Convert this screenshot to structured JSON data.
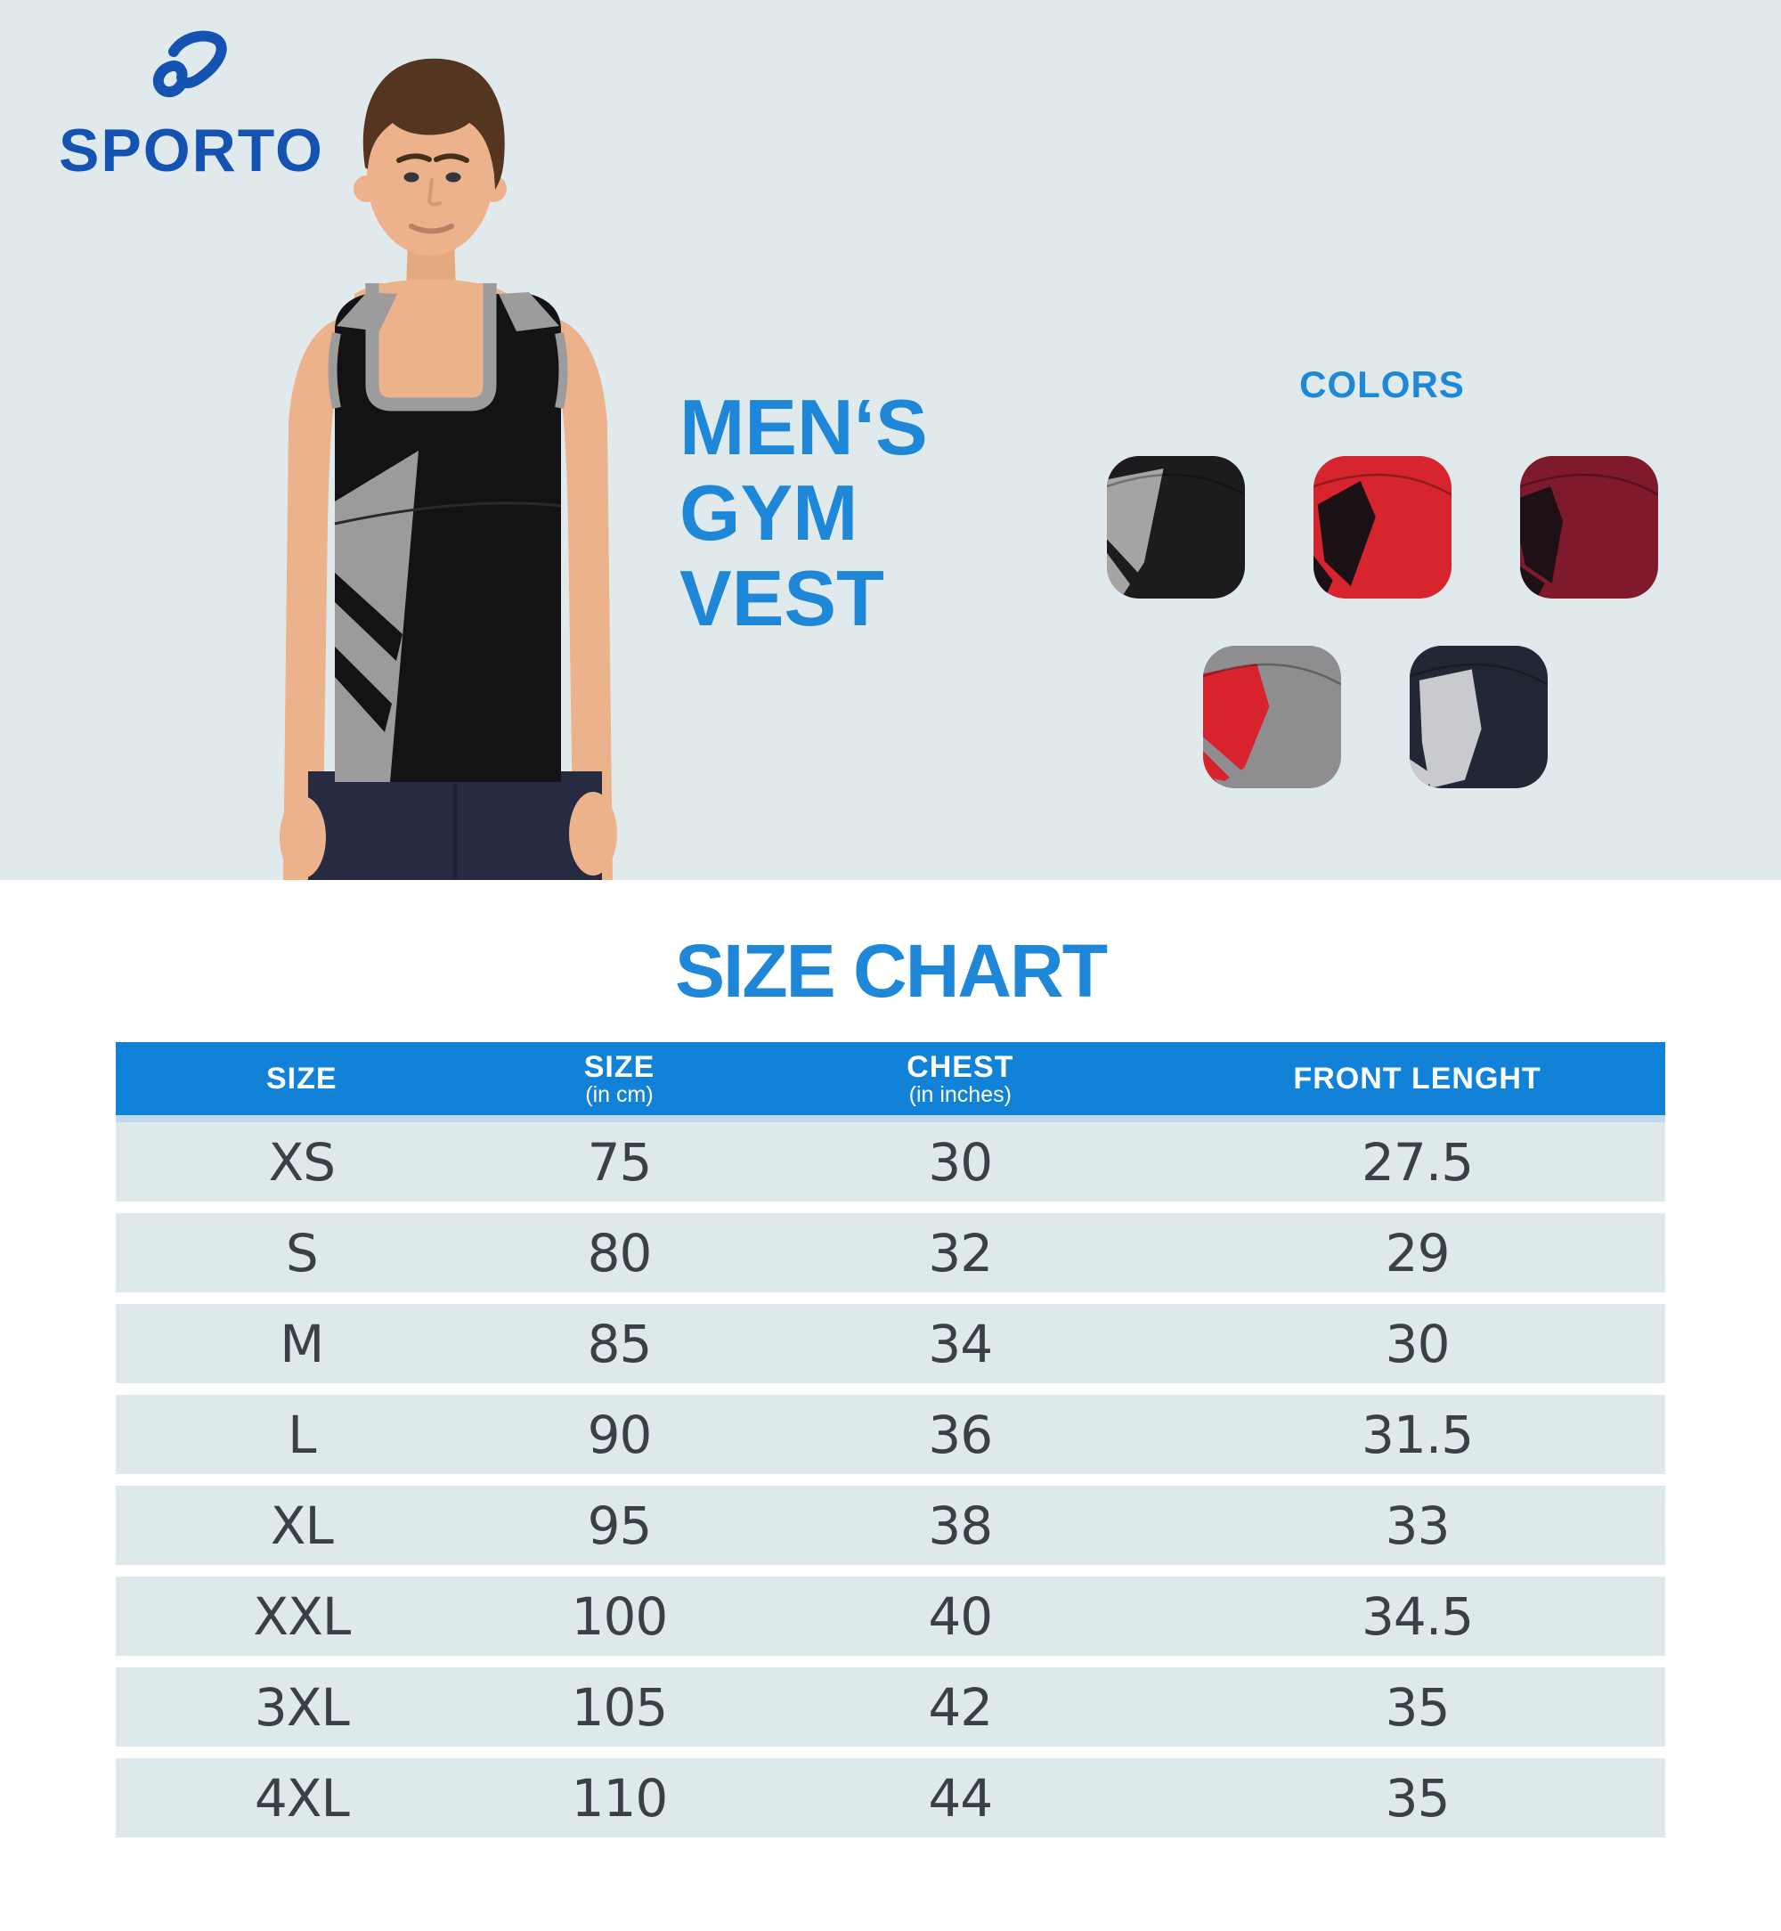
{
  "brand": {
    "name": "SPORTO"
  },
  "hero": {
    "title_lines": [
      "MEN‘S",
      "GYM",
      "VEST"
    ],
    "colors_label": "COLORS",
    "swatches": [
      {
        "name": "black-with-grey-panel",
        "base": "#1d1b1e",
        "patch": "#a6a4a2"
      },
      {
        "name": "red-with-black-panel",
        "base": "#d6252f",
        "patch": "#1a1117"
      },
      {
        "name": "maroon-with-black-panel",
        "base": "#7e1a2b",
        "patch": "#1d1016"
      },
      {
        "name": "grey-with-red-panel",
        "base": "#8e8d8f",
        "patch": "#d8232e"
      },
      {
        "name": "navy-with-grey-panel",
        "base": "#222736",
        "patch": "#c8cacd"
      }
    ]
  },
  "size_chart": {
    "title": "SIZE CHART",
    "columns": [
      {
        "label": "SIZE",
        "sub": ""
      },
      {
        "label": "SIZE",
        "sub": "(in cm)"
      },
      {
        "label": "CHEST",
        "sub": "(in inches)"
      },
      {
        "label": "FRONT LENGHT",
        "sub": ""
      }
    ],
    "rows": [
      [
        "XS",
        "75",
        "30",
        "27.5"
      ],
      [
        "S",
        "80",
        "32",
        "29"
      ],
      [
        "M",
        "85",
        "34",
        "30"
      ],
      [
        "L",
        "90",
        "36",
        "31.5"
      ],
      [
        "XL",
        "95",
        "38",
        "33"
      ],
      [
        "XXL",
        "100",
        "40",
        "34.5"
      ],
      [
        "3XL",
        "105",
        "42",
        "35"
      ],
      [
        "4XL",
        "110",
        "44",
        "35"
      ]
    ]
  },
  "theme": {
    "brand_blue": "#1553b2",
    "accent_blue": "#1e87d8",
    "header_blue": "#1182d8",
    "section_bg": "#e0eaec",
    "row_bg": "#dde9eb",
    "row_text": "#3a4045",
    "header_text": "#ffffff"
  }
}
